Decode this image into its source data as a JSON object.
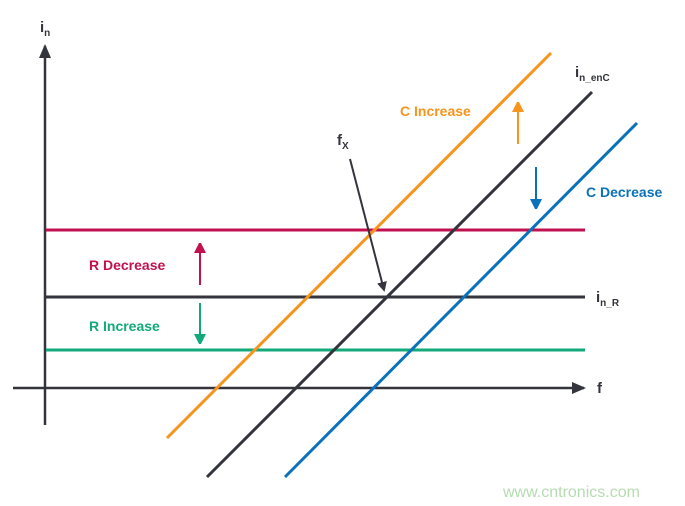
{
  "axes": {
    "y_label": "i",
    "y_sub": "n",
    "x_label": "f"
  },
  "labels": {
    "in_enC_main": "i",
    "in_enC_sub": "n_enC",
    "in_R_main": "i",
    "in_R_sub": "n_R",
    "fx_main": "f",
    "fx_sub": "X",
    "c_increase": "C Increase",
    "c_decrease": "C Decrease",
    "r_decrease": "R Decrease",
    "r_increase": "R Increase"
  },
  "watermark": "www.cntronics.com",
  "colors": {
    "axis": "#33343c",
    "orange": "#f7941d",
    "blue": "#0a72ba",
    "red": "#c1124f",
    "green": "#13a97a",
    "watermark": "#b5dcb0"
  }
}
